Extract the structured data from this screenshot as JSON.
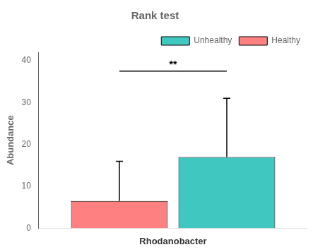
{
  "chart_data": {
    "type": "bar",
    "title": "Rank test",
    "categories": [
      "Rhodanobacter"
    ],
    "y_label": "Abundance",
    "series": [
      {
        "name": "Healthy",
        "color": "#FF8080",
        "values": [
          6.5
        ],
        "error_upper": [
          9.5
        ]
      },
      {
        "name": "Unhealthy",
        "color": "#40C8C0",
        "values": [
          17.0
        ],
        "error_upper": [
          14.0
        ]
      }
    ],
    "annotations": [
      {
        "text": "**",
        "y": 37.8,
        "line_y": 37.5
      }
    ],
    "ylim": [
      0,
      42
    ],
    "yticks": [
      0,
      10,
      20,
      30,
      40
    ],
    "grid": false,
    "legend": "upper right"
  }
}
